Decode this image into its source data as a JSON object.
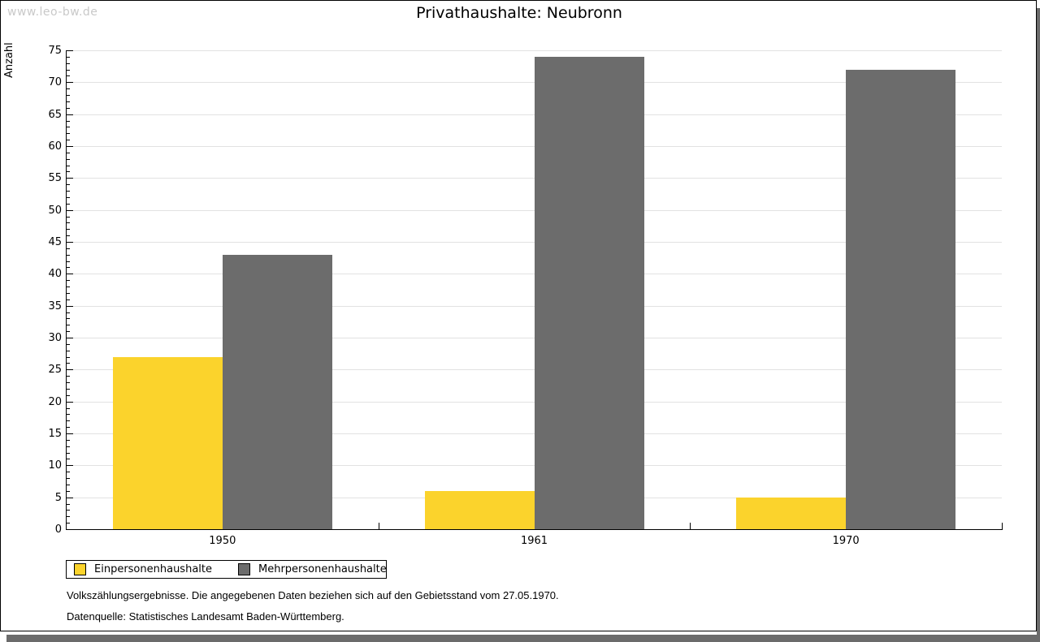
{
  "watermark": "www.leo-bw.de",
  "chart_data": {
    "type": "bar",
    "title": "Privathaushalte: Neubronn",
    "xlabel": "",
    "ylabel": "Anzahl",
    "categories": [
      "1950",
      "1961",
      "1970"
    ],
    "series": [
      {
        "name": "Einpersonenhaushalte",
        "color": "#fbd32c",
        "values": [
          27,
          6,
          5
        ]
      },
      {
        "name": "Mehrpersonenhaushalte",
        "color": "#6c6c6c",
        "values": [
          43,
          74,
          72
        ]
      }
    ],
    "ylim": [
      0,
      75
    ],
    "ytick_major_step": 5,
    "ytick_minor_step": 1,
    "grid": true,
    "legend_position": "bottom-left"
  },
  "footnotes": {
    "line1": "Volkszählungsergebnisse. Die angegebenen Daten beziehen sich auf den Gebietsstand vom 27.05.1970.",
    "line2": "Datenquelle: Statistisches Landesamt Baden-Württemberg."
  },
  "colors": {
    "page_background": "#ffffff",
    "page_border": "#000000",
    "shadow": "#6b6b6b",
    "watermark": "#c9c9c9",
    "gridline": "#e2e2e2",
    "axis": "#000000",
    "series1": "#fbd32c",
    "series2": "#6c6c6c"
  }
}
